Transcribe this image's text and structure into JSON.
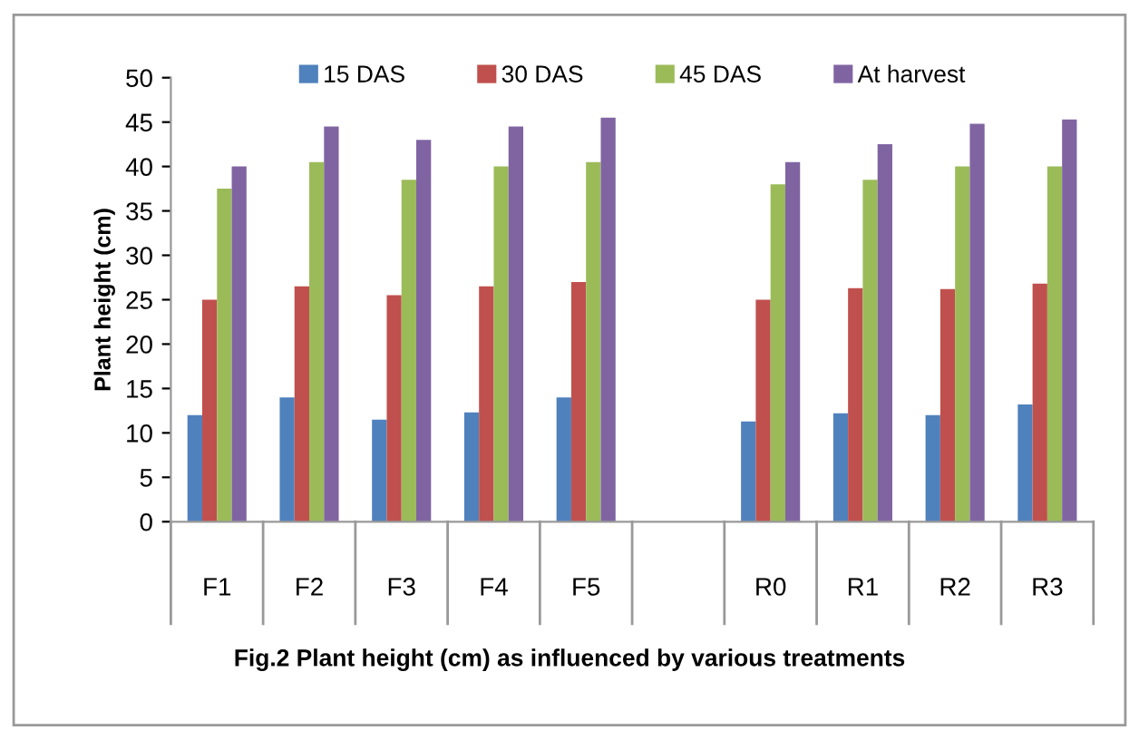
{
  "chart_data": {
    "type": "bar",
    "ylabel": "Plant height (cm)",
    "annotations": [
      "Fig.2 Plant height (cm) as influenced by various treatments"
    ],
    "categories": [
      "F1",
      "F2",
      "F3",
      "F4",
      "F5",
      null,
      "R0",
      "R1",
      "R2",
      "R3"
    ],
    "series": [
      {
        "name": "15 DAS",
        "color": "#4f81bd",
        "values": [
          12,
          14,
          11.5,
          12.3,
          14,
          null,
          11.3,
          12.2,
          12,
          13.2
        ]
      },
      {
        "name": "30 DAS",
        "color": "#c0504d",
        "values": [
          25,
          26.5,
          25.5,
          26.5,
          27,
          null,
          25,
          26.3,
          26.2,
          26.8
        ]
      },
      {
        "name": "45 DAS",
        "color": "#9bbb59",
        "values": [
          37.5,
          40.5,
          38.5,
          40,
          40.5,
          null,
          38,
          38.5,
          40,
          40
        ]
      },
      {
        "name": "At harvest",
        "color": "#8064a2",
        "values": [
          40,
          44.5,
          43,
          44.5,
          45.5,
          null,
          40.5,
          42.5,
          44.8,
          45.3
        ]
      }
    ],
    "ylim": [
      0,
      50
    ],
    "yticks": [
      0,
      5,
      10,
      15,
      20,
      25,
      30,
      35,
      40,
      45,
      50
    ],
    "grid": false,
    "legend": "top"
  }
}
